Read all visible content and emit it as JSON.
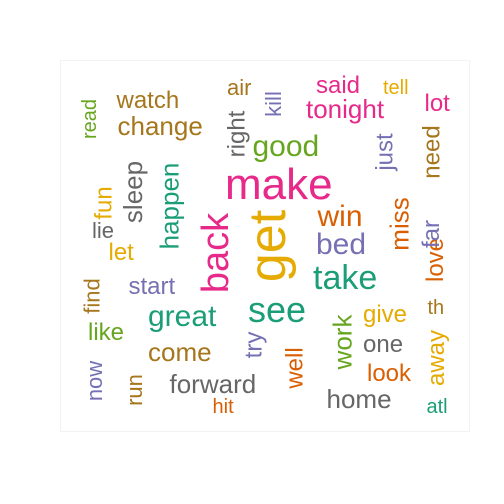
{
  "colors": {
    "green": "#1B9E77",
    "orange": "#D95F02",
    "purple": "#7570B3",
    "magenta": "#E7298A",
    "lime": "#66A61E",
    "gold": "#E6AB02",
    "brown": "#A6761D",
    "grey": "#666666"
  },
  "words": [
    {
      "text": "get",
      "color": "gold",
      "orientation": "vertical"
    },
    {
      "text": "make",
      "color": "magenta",
      "orientation": "horizontal"
    },
    {
      "text": "back",
      "color": "magenta",
      "orientation": "vertical"
    },
    {
      "text": "see",
      "color": "green",
      "orientation": "horizontal"
    },
    {
      "text": "take",
      "color": "green",
      "orientation": "horizontal"
    },
    {
      "text": "bed",
      "color": "purple",
      "orientation": "horizontal"
    },
    {
      "text": "win",
      "color": "orange",
      "orientation": "horizontal"
    },
    {
      "text": "good",
      "color": "lime",
      "orientation": "horizontal"
    },
    {
      "text": "great",
      "color": "green",
      "orientation": "horizontal"
    },
    {
      "text": "happen",
      "color": "green",
      "orientation": "vertical"
    },
    {
      "text": "tonight",
      "color": "magenta",
      "orientation": "horizontal"
    },
    {
      "text": "change",
      "color": "brown",
      "orientation": "horizontal"
    },
    {
      "text": "watch",
      "color": "brown",
      "orientation": "horizontal"
    },
    {
      "text": "forward",
      "color": "grey",
      "orientation": "horizontal"
    },
    {
      "text": "come",
      "color": "brown",
      "orientation": "horizontal"
    },
    {
      "text": "start",
      "color": "purple",
      "orientation": "horizontal"
    },
    {
      "text": "work",
      "color": "lime",
      "orientation": "vertical"
    },
    {
      "text": "miss",
      "color": "orange",
      "orientation": "vertical"
    },
    {
      "text": "home",
      "color": "grey",
      "orientation": "horizontal"
    },
    {
      "text": "one",
      "color": "grey",
      "orientation": "horizontal"
    },
    {
      "text": "look",
      "color": "orange",
      "orientation": "horizontal"
    },
    {
      "text": "give",
      "color": "gold",
      "orientation": "horizontal"
    },
    {
      "text": "said",
      "color": "magenta",
      "orientation": "horizontal"
    },
    {
      "text": "right",
      "color": "grey",
      "orientation": "vertical"
    },
    {
      "text": "sleep",
      "color": "grey",
      "orientation": "vertical"
    },
    {
      "text": "love",
      "color": "orange",
      "orientation": "vertical"
    },
    {
      "text": "try",
      "color": "purple",
      "orientation": "vertical"
    },
    {
      "text": "well",
      "color": "orange",
      "orientation": "vertical"
    },
    {
      "text": "lot",
      "color": "magenta",
      "orientation": "horizontal"
    },
    {
      "text": "just",
      "color": "purple",
      "orientation": "vertical"
    },
    {
      "text": "need",
      "color": "brown",
      "orientation": "vertical"
    },
    {
      "text": "far",
      "color": "purple",
      "orientation": "vertical"
    },
    {
      "text": "away",
      "color": "gold",
      "orientation": "vertical"
    },
    {
      "text": "fun",
      "color": "gold",
      "orientation": "vertical"
    },
    {
      "text": "let",
      "color": "gold",
      "orientation": "horizontal"
    },
    {
      "text": "lie",
      "color": "grey",
      "orientation": "horizontal"
    },
    {
      "text": "find",
      "color": "brown",
      "orientation": "vertical"
    },
    {
      "text": "like",
      "color": "lime",
      "orientation": "horizontal"
    },
    {
      "text": "now",
      "color": "purple",
      "orientation": "vertical"
    },
    {
      "text": "run",
      "color": "brown",
      "orientation": "vertical"
    },
    {
      "text": "air",
      "color": "brown",
      "orientation": "horizontal"
    },
    {
      "text": "kill",
      "color": "purple",
      "orientation": "vertical"
    },
    {
      "text": "tell",
      "color": "gold",
      "orientation": "horizontal"
    },
    {
      "text": "read",
      "color": "lime",
      "orientation": "vertical"
    },
    {
      "text": "hit",
      "color": "orange",
      "orientation": "horizontal"
    },
    {
      "text": "atl",
      "color": "green",
      "orientation": "horizontal"
    },
    {
      "text": "th",
      "color": "brown",
      "orientation": "horizontal"
    }
  ]
}
